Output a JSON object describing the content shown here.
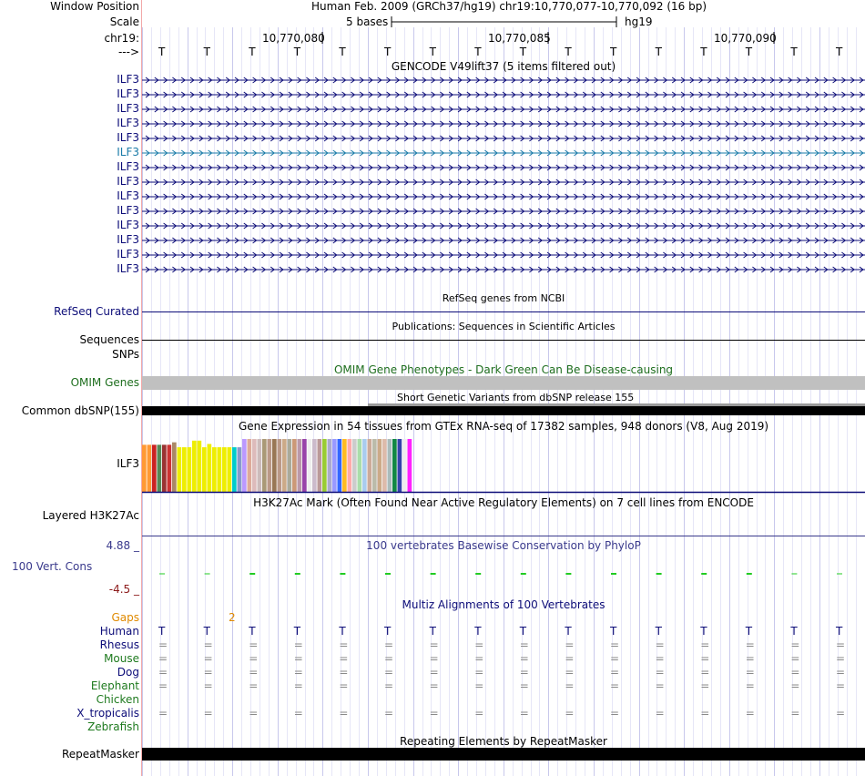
{
  "header": {
    "window_position_label": "Window Position",
    "window_position_value": "Human Feb. 2009 (GRCh37/hg19)   chr19:10,770,077-10,770,092 (16 bp)",
    "scale_label": "Scale",
    "scale_text": "5 bases",
    "scale_assembly": "hg19",
    "chrom_label": "chr19:",
    "direction_label": "--->",
    "coords": [
      "10,770,080",
      "10,770,085",
      "10,770,090"
    ],
    "bases": [
      "T",
      "T",
      "T",
      "T",
      "T",
      "T",
      "T",
      "T",
      "T",
      "T",
      "T",
      "T",
      "T",
      "T",
      "T",
      "T"
    ]
  },
  "gencode": {
    "title": "GENCODE V49lift37 (5 items filtered out)",
    "rows": [
      "ILF3",
      "ILF3",
      "ILF3",
      "ILF3",
      "ILF3",
      "ILF3",
      "ILF3",
      "ILF3",
      "ILF3",
      "ILF3",
      "ILF3",
      "ILF3",
      "ILF3",
      "ILF3"
    ],
    "highlight_index": 5,
    "color": "#0c0c78",
    "highlight_color": "#1a7ba8"
  },
  "refseq": {
    "title": "RefSeq genes from NCBI",
    "label": "RefSeq Curated",
    "color": "#0c0c78"
  },
  "publications": {
    "title": "Publications: Sequences in Scientific Articles",
    "label": "Sequences"
  },
  "snps": {
    "label": "SNPs"
  },
  "omim": {
    "title": "OMIM Gene Phenotypes - Dark Green Can Be Disease-causing",
    "label": "OMIM Genes",
    "color": "#1e6e1e"
  },
  "dbsnp": {
    "title": "Short Genetic Variants from dbSNP release 155",
    "label": "Common dbSNP(155)"
  },
  "gtex": {
    "title": "Gene Expression in 54 tissues from GTEx RNA-seq of 17382 samples, 948 donors (V8, Aug 2019)",
    "label": "ILF3",
    "chart_data": {
      "type": "bar",
      "title": "Gene Expression in 54 tissues from GTEx RNA-seq of 17382 samples, 948 donors (V8, Aug 2019)",
      "values": [
        57,
        57,
        57,
        57,
        57,
        57,
        60,
        54,
        54,
        54,
        62,
        62,
        54,
        58,
        54,
        54,
        54,
        54,
        54,
        54,
        64,
        64,
        64,
        64,
        64,
        64,
        64,
        64,
        64,
        64,
        64,
        64,
        64,
        64,
        64,
        64,
        64,
        64,
        64,
        64,
        64,
        64,
        64,
        64,
        64,
        64,
        64,
        64,
        64,
        64,
        64,
        64,
        64,
        64
      ],
      "colors": [
        "#ff9933",
        "#ff9933",
        "#cc2222",
        "#558855",
        "#993333",
        "#cc3333",
        "#aa8866",
        "#eeee00",
        "#eeee00",
        "#eeee00",
        "#eeee00",
        "#eeee00",
        "#eeee00",
        "#eeee00",
        "#eeee00",
        "#eeee00",
        "#eeee00",
        "#eeee00",
        "#00cccc",
        "#8899cc",
        "#bb99ff",
        "#ddaa99",
        "#ddbbbb",
        "#ccbbbb",
        "#aa9977",
        "#bb9988",
        "#997755",
        "#bb9988",
        "#ccaa88",
        "#aaaa99",
        "#cc9977",
        "#bb99aa",
        "#9944aa",
        "#eeeeee",
        "#ccbbcc",
        "#bb9999",
        "#99cc33",
        "#aaaacc",
        "#9999ff",
        "#3366ff",
        "#ffbb22",
        "#ffaaaa",
        "#cccccc",
        "#aaddaa",
        "#aaccee",
        "#ccaa99",
        "#bbbbaa",
        "#ccaa88",
        "#ddbbaa",
        "#aabbbb",
        "#118844",
        "#3344aa",
        "#eeeeee",
        "#ff22ff"
      ]
    }
  },
  "h3k27ac": {
    "title": "H3K27Ac Mark (Often Found Near Active Regulatory Elements) on 7 cell lines from ENCODE",
    "label": "Layered H3K27Ac"
  },
  "conservation": {
    "title": "100 vertebrates Basewise Conservation by PhyloP",
    "label": "100 Vert. Cons",
    "max_label": "4.88 _",
    "min_label": "-4.5 _",
    "color": "#3a3a8c",
    "min_color": "#8c1a1a",
    "tick_color": "#22cc22"
  },
  "multiz": {
    "title": "Multiz Alignments of 100 Vertebrates",
    "gaps_label": "Gaps",
    "gaps_value": "2",
    "gaps_color": "#e08a00",
    "species": [
      {
        "name": "Human",
        "color": "#0c0c78",
        "symbol": "T"
      },
      {
        "name": "Rhesus",
        "color": "#0c0c78",
        "symbol": "="
      },
      {
        "name": "Mouse",
        "color": "#1e7a1e",
        "symbol": "="
      },
      {
        "name": "Dog",
        "color": "#0c0c78",
        "symbol": "="
      },
      {
        "name": "Elephant",
        "color": "#1e7a1e",
        "symbol": "="
      },
      {
        "name": "Chicken",
        "color": "#1e7a1e",
        "symbol": ""
      },
      {
        "name": "X_tropicalis",
        "color": "#0c0c78",
        "symbol": "="
      },
      {
        "name": "Zebrafish",
        "color": "#1e7a1e",
        "symbol": ""
      }
    ]
  },
  "repeatmasker": {
    "title": "Repeating Elements by RepeatMasker",
    "label": "RepeatMasker"
  }
}
